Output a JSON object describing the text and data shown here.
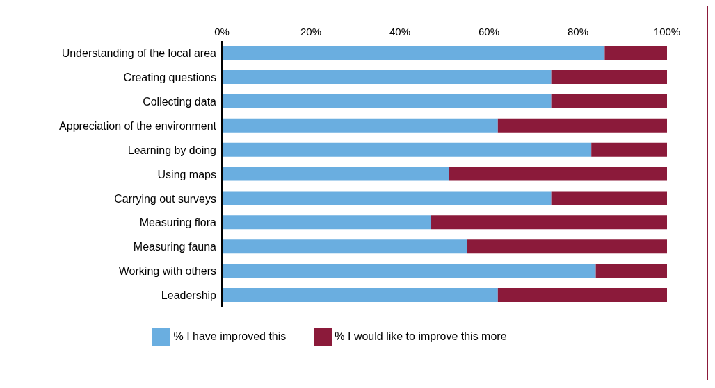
{
  "chart_data": {
    "type": "bar",
    "orientation": "horizontal",
    "stacked": true,
    "categories": [
      "Understanding of the local area",
      "Creating questions",
      "Collecting data",
      "Appreciation of the environment",
      "Learning by doing",
      "Using maps",
      "Carrying out surveys",
      "Measuring flora",
      "Measuring fauna",
      "Working with others",
      "Leadership"
    ],
    "series": [
      {
        "name": "% I have improved this",
        "color": "#6aaee0",
        "values": [
          86,
          74,
          74,
          62,
          83,
          51,
          74,
          47,
          55,
          84,
          62
        ]
      },
      {
        "name": "% I would like to improve this more",
        "color": "#8b1a3a",
        "values": [
          14,
          26,
          26,
          38,
          17,
          49,
          26,
          53,
          45,
          16,
          38
        ]
      }
    ],
    "xlim": [
      0,
      100
    ],
    "xticks": [
      {
        "value": 0,
        "label": "0%"
      },
      {
        "value": 20,
        "label": "20%"
      },
      {
        "value": 40,
        "label": "40%"
      },
      {
        "value": 60,
        "label": "60%"
      },
      {
        "value": 80,
        "label": "80%"
      },
      {
        "value": 100,
        "label": "100%"
      }
    ],
    "grid": false,
    "legend": "bottom"
  }
}
